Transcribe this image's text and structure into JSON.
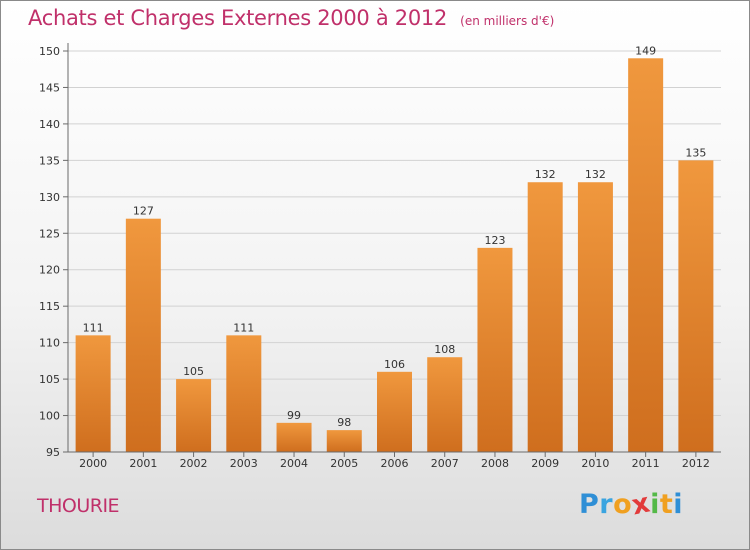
{
  "chart_data": {
    "type": "bar",
    "title": "Achats et Charges Externes 2000 à 2012",
    "subtitle": "(en milliers d'€)",
    "xlabel": "",
    "ylabel": "",
    "categories": [
      "2000",
      "2001",
      "2002",
      "2003",
      "2004",
      "2005",
      "2006",
      "2007",
      "2008",
      "2009",
      "2010",
      "2011",
      "2012"
    ],
    "values": [
      111,
      127,
      105,
      111,
      99,
      98,
      106,
      108,
      123,
      132,
      132,
      149,
      135
    ],
    "ylim": [
      95,
      150
    ],
    "yticks": [
      95,
      100,
      105,
      110,
      115,
      120,
      125,
      130,
      135,
      140,
      145,
      150
    ],
    "grid": true,
    "legend": "none",
    "bar_color": "#f0983e",
    "bar_color_dark": "#cf6e1e"
  },
  "city": "THOURIE",
  "brand": {
    "letters": [
      "P",
      "r",
      "o",
      "x",
      "i",
      "t",
      "i"
    ],
    "colors": [
      "#2f8fd6",
      "#3aa4e0",
      "#f0a020",
      "#e23b3b",
      "#54b948",
      "#f0a020",
      "#2f8fd6"
    ]
  },
  "colors": {
    "title": "#c0306a",
    "grid": "#d2d2d2",
    "axis": "#6a6a6a"
  }
}
